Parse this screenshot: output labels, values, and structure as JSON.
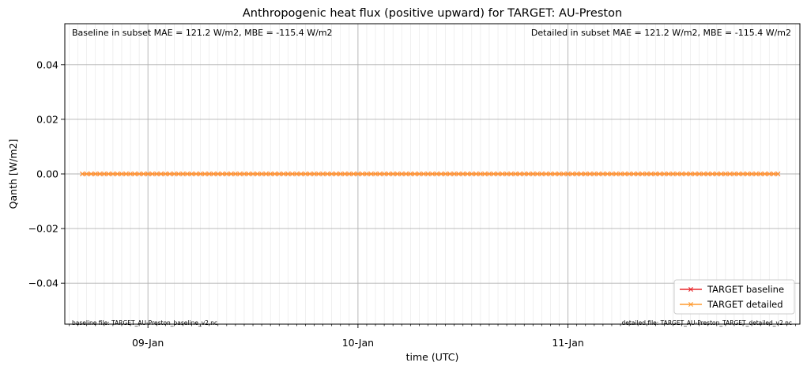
{
  "chart_data": {
    "type": "line",
    "title": "Anthropogenic heat flux (positive upward) for TARGET: AU-Preston",
    "xlabel": "time (UTC)",
    "ylabel": "Qanth [W/m2]",
    "ylim": [
      -0.055,
      0.055
    ],
    "xlim_hours": [
      -9.5,
      74.5
    ],
    "x_start_hour": -7.5,
    "x_step_hours": 0.5,
    "x_count": 160,
    "y_ticks": [
      -0.04,
      -0.02,
      0.0,
      0.02,
      0.04
    ],
    "y_tick_labels": [
      "−0.04",
      "−0.02",
      "0.00",
      "0.02",
      "0.04"
    ],
    "x_major_ticks_hours": [
      0,
      24,
      48
    ],
    "x_tick_labels": [
      "09-Jan",
      "10-Jan",
      "11-Jan"
    ],
    "grid": true,
    "legend_position": "lower-right",
    "series": [
      {
        "name": "TARGET baseline",
        "color": "#e8262a",
        "marker": "x",
        "constant_value": 0.0
      },
      {
        "name": "TARGET detailed",
        "color": "#ff9a2e",
        "marker": "x",
        "constant_value": 0.0
      }
    ],
    "annotations": {
      "baseline_metrics": "Baseline in subset MAE = 121.2 W/m2, MBE = -115.4 W/m2",
      "detailed_metrics": "Detailed in subset MAE = 121.2 W/m2, MBE = -115.4 W/m2",
      "baseline_file": "baseline file: TARGET_AU-Preston_baseline_v2.nc",
      "detailed_file": "detailed file: TARGET_AU-Preston_TARGET_detailed_v2.nc"
    }
  }
}
